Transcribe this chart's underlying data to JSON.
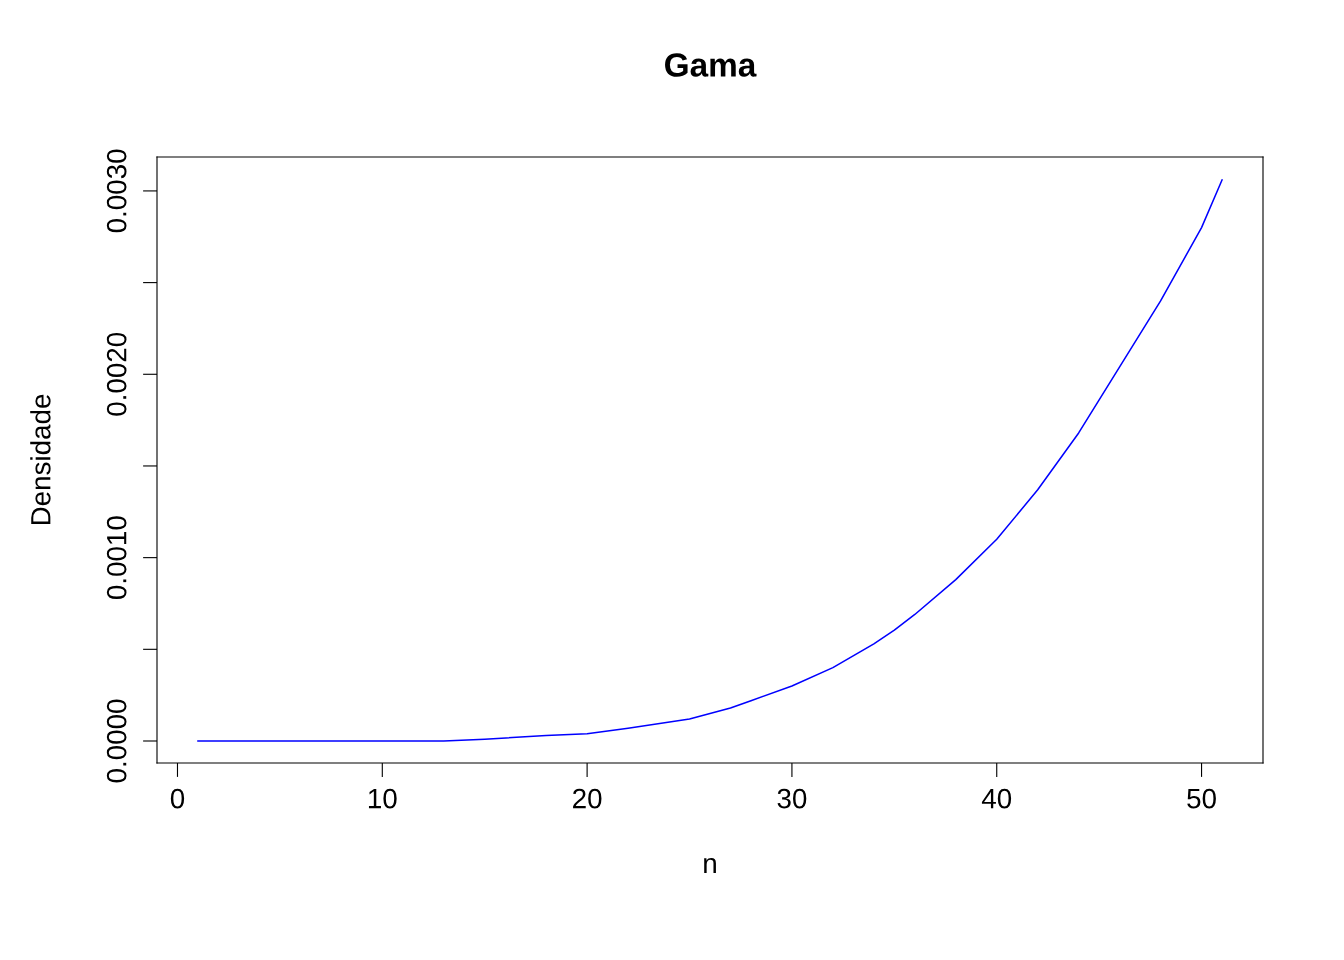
{
  "chart_data": {
    "type": "line",
    "title": "Gama",
    "xlabel": "n",
    "ylabel": "Densidade",
    "x": [
      1,
      5,
      10,
      13,
      15,
      18,
      20,
      22,
      25,
      27,
      28,
      30,
      32,
      34,
      35,
      36,
      38,
      40,
      42,
      44,
      45,
      46,
      48,
      50,
      51
    ],
    "series": [
      {
        "color": "#0000ff",
        "values": [
          0,
          0,
          0,
          0,
          1e-05,
          3e-05,
          4e-05,
          7e-05,
          0.00012,
          0.00018,
          0.00022,
          0.0003,
          0.0004,
          0.00053,
          0.000605,
          0.00069,
          0.00088,
          0.0011,
          0.00137,
          0.00168,
          0.00186,
          0.00204,
          0.0024,
          0.0028,
          0.00306
        ]
      }
    ],
    "xlim": [
      -1,
      53
    ],
    "xticks": [
      0,
      10,
      20,
      30,
      40,
      50
    ],
    "ylim": [
      -0.00012,
      0.003185
    ],
    "yticks": [
      "0.0000",
      {
        "value": 0.0005,
        "label": null
      },
      {
        "value": 0.001,
        "label": "0.0010"
      },
      {
        "value": 0.0015,
        "label": null
      },
      {
        "value": 0.002,
        "label": "0.0020"
      },
      {
        "value": 0.0025,
        "label": null
      },
      {
        "value": 0.003,
        "label": "0.0030"
      }
    ],
    "grid": false,
    "legend": false,
    "marker": "none",
    "line_style": "solid"
  }
}
